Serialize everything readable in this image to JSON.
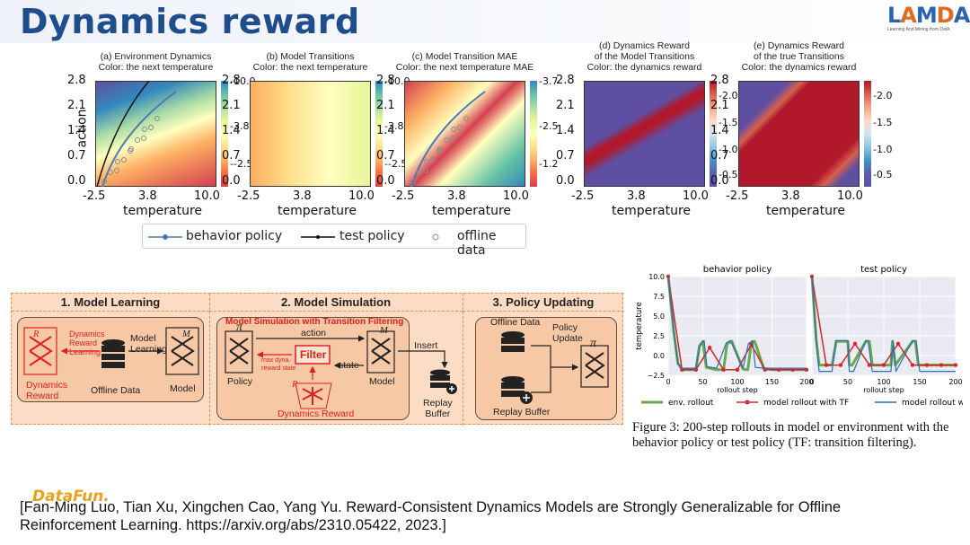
{
  "slide": {
    "title": "Dynamics reward",
    "logo_text": "LAMDA",
    "logo_subtitle": "Learning And Mining from DatA",
    "brand_mark": "DataFun."
  },
  "heatmaps": {
    "panels": [
      {
        "title_line1": "(a) Environment Dynamics",
        "title_line2": "Color: the next temperature",
        "cbar_ticks": [
          "10.0",
          "3.8",
          "-2.5"
        ],
        "cmap": "spectral"
      },
      {
        "title_line1": "(b) Model Transitions",
        "title_line2": "Color: the next temperature",
        "cbar_ticks": [
          "10.0",
          "3.8",
          "-2.5"
        ],
        "cmap": "spectral"
      },
      {
        "title_line1": "(c) Model Transition MAE",
        "title_line2": "Color: the next temperature MAE",
        "cbar_ticks": [
          "3.7",
          "2.5",
          "1.2"
        ],
        "cmap": "spectral"
      },
      {
        "title_line0": "(d) Dynamics Reward",
        "title_line1": "of the Model Transitions",
        "title_line2": "Color: the dynamics reward",
        "cbar_ticks": [
          "2.0",
          "1.5",
          "1.0",
          "0.5"
        ],
        "cmap": "rdbu"
      },
      {
        "title_line0": "(e) Dynamics Reward",
        "title_line1": "of the true Transitions",
        "title_line2": "Color: the dynamics reward",
        "cbar_ticks": [
          "2.0",
          "1.5",
          "1.0",
          "0.5"
        ],
        "cmap": "rdbu"
      }
    ],
    "y_ticks": [
      "2.8",
      "2.1",
      "1.4",
      "0.7",
      "0.0"
    ],
    "x_ticks": [
      "-2.5",
      "3.8",
      "10.0"
    ],
    "xlabel": "temperature",
    "ylabel": "action",
    "legend": {
      "behavior": "behavior policy",
      "test": "test policy",
      "offline": "offline data"
    },
    "colors": {
      "behavior": "#4f78b8",
      "test": "#111111",
      "offline": "#8a8a8a"
    }
  },
  "pipeline": {
    "stage1": {
      "header": "1. Model Learning",
      "dyn_reward_learning": [
        "Dynamics",
        "Reward",
        "Learning"
      ],
      "model_learning": [
        "Model",
        "Learning"
      ],
      "dynamics_reward": [
        "Dynamics",
        "Reward"
      ],
      "offline_data": "Offline Data",
      "model": "Model",
      "r_symbol": "R",
      "m_symbol": "M"
    },
    "stage2": {
      "header": "2. Model Simulation",
      "subtitle": "Model Simulation with Transition Filtering",
      "action": "action",
      "state": "state",
      "filter": "Filter",
      "max_dyna": "max dyna.",
      "reward_state": "reward state",
      "policy": "Policy",
      "model": "Model",
      "dynamics_reward": "Dynamics Reward",
      "insert": "Insert",
      "replay_buffer": [
        "Replay",
        "Buffer"
      ],
      "pi_symbol": "π",
      "m_symbol": "M",
      "r_symbol": "R"
    },
    "stage3": {
      "header": "3. Policy Updating",
      "offline_data": "Offline Data",
      "policy_update": [
        "Policy",
        "Update"
      ],
      "replay_buffer": "Replay Buffer",
      "pi_symbol": "π"
    }
  },
  "chart_data": {
    "type": "line",
    "subplots": [
      {
        "title": "behavior policy",
        "xlabel": "rollout step",
        "ylabel": "temperature",
        "xlim": [
          0,
          200
        ],
        "ylim": [
          -2.5,
          10.0
        ],
        "x_ticks": [
          "0",
          "50",
          "100",
          "150",
          "200"
        ],
        "y_ticks": [
          "10.0",
          "7.5",
          "5.0",
          "2.5",
          "0.0",
          "−2.5"
        ],
        "series": [
          {
            "name": "env. rollout",
            "color": "#6aa84f",
            "x": [
              0,
              8,
              14,
              20,
              40,
              45,
              50,
              55,
              70,
              80,
              85,
              92,
              108,
              115,
              120,
              125,
              138,
              150,
              158,
              166,
              180,
              200
            ],
            "y": [
              10,
              3,
              -1,
              -1.8,
              -1.8,
              1.2,
              1.8,
              -1.5,
              -1.8,
              -1.8,
              1.5,
              1.8,
              -1.7,
              -1.8,
              1.5,
              1.8,
              -1.6,
              -1.8,
              -1.8,
              -1.8,
              -1.8,
              -1.8
            ]
          },
          {
            "name": "model rollout with TF",
            "color": "#d62728",
            "x": [
              0,
              20,
              40,
              60,
              80,
              100,
              120,
              140,
              160,
              180,
              200
            ],
            "y": [
              10,
              -1.8,
              -1.8,
              1.0,
              -1.8,
              -1.8,
              1.4,
              -1.8,
              -1.8,
              -1.8,
              -1.8
            ]
          },
          {
            "name": "model rollout w/o TF",
            "color": "#2a6fb8",
            "x": [
              0,
              8,
              14,
              20,
              40,
              46,
              52,
              56,
              70,
              84,
              90,
              108,
              116,
              122,
              126,
              138,
              158,
              200
            ],
            "y": [
              10,
              3,
              -1,
              -1.6,
              -1.6,
              1.3,
              1.9,
              -1.4,
              -1.6,
              1.6,
              1.9,
              -1.6,
              1.5,
              1.9,
              -1.5,
              -1.6,
              -1.6,
              -1.6
            ]
          }
        ]
      },
      {
        "title": "test policy",
        "xlabel": "rollout step",
        "ylabel": "",
        "xlim": [
          0,
          200
        ],
        "ylim": [
          -2.5,
          10.0
        ],
        "x_ticks": [
          "0",
          "50",
          "100",
          "150",
          "200"
        ],
        "y_ticks": [],
        "series": [
          {
            "name": "env. rollout",
            "color": "#6aa84f",
            "x": [
              0,
              6,
              10,
              16,
              28,
              34,
              50,
              52,
              56,
              75,
              80,
              84,
              110,
              112,
              116,
              140,
              144,
              148,
              170,
              200
            ],
            "y": [
              10,
              2,
              -1.2,
              -1.2,
              -1.2,
              1.8,
              1.8,
              -1.2,
              -1.2,
              1.8,
              1.8,
              -1.2,
              -1.2,
              1.8,
              -1.2,
              1.8,
              1.8,
              -1.2,
              -1.2,
              -1.2
            ]
          },
          {
            "name": "model rollout with TF",
            "color": "#d62728",
            "x": [
              0,
              20,
              40,
              60,
              80,
              100,
              120,
              140,
              160,
              180,
              200
            ],
            "y": [
              10,
              -1.2,
              -1.2,
              1.5,
              -1.2,
              -1.2,
              1.5,
              -1.2,
              -1.2,
              -1.2,
              -1.2
            ]
          },
          {
            "name": "model rollout w/o TF",
            "color": "#2a6fb8",
            "x": [
              0,
              6,
              10,
              16,
              28,
              33,
              50,
              52,
              56,
              58,
              75,
              78,
              84,
              88,
              110,
              113,
              117,
              140,
              145,
              150,
              200
            ],
            "y": [
              10,
              2,
              -2.0,
              -2.0,
              -2.0,
              1.9,
              1.9,
              -2.0,
              -2.0,
              -2.0,
              1.9,
              1.9,
              -2.0,
              -2.0,
              -2.0,
              1.9,
              -2.0,
              1.9,
              1.9,
              -2.0,
              -2.0
            ]
          }
        ]
      }
    ],
    "legend": [
      "env. rollout",
      "model rollout with TF",
      "model rollout w/o TF"
    ]
  },
  "caption": "Figure 3: 200-step rollouts in model or environment with the behavior policy or test policy (TF: transition filtering).",
  "citation": "[Fan-Ming Luo, Tian Xu, Xingchen Cao, Yang Yu. Reward-Consistent Dynamics Models are Strongly Generalizable for Offline Reinforcement Learning. https://arxiv.org/abs/2310.05422, 2023.]"
}
